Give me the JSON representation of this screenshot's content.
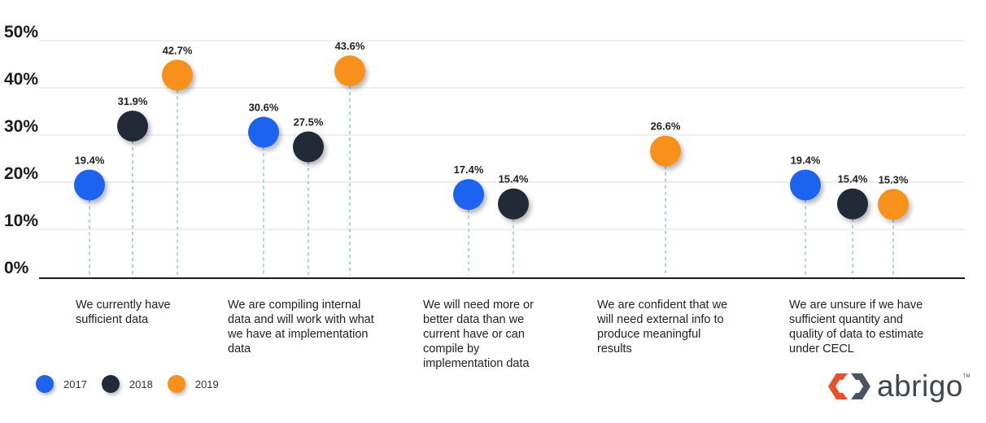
{
  "chart_data": {
    "type": "scatter",
    "ylim": [
      0,
      50
    ],
    "yticks": [
      "0%",
      "10%",
      "20%",
      "30%",
      "40%",
      "50%"
    ],
    "grid": true,
    "legend_position": "bottom-left",
    "categories": [
      [
        "We currently have",
        "sufficient data"
      ],
      [
        "We are compiling internal",
        "data and will work with what",
        "we have at implementation",
        "data"
      ],
      [
        "We will need more or",
        "better data than we",
        "current have or can",
        "compile by",
        "implementation data"
      ],
      [
        "We are confident that we",
        "will need external info to",
        "produce meaningful",
        "results"
      ],
      [
        "We are unsure if we have",
        "sufficient quantity and",
        "quality of data to estimate",
        "under CECL"
      ]
    ],
    "series": [
      {
        "name": "2017",
        "color": "#1e63f0",
        "values": [
          19.4,
          30.6,
          17.4,
          null,
          19.4
        ],
        "labels": [
          "19.4%",
          "30.6%",
          "17.4%",
          null,
          "19.4%"
        ]
      },
      {
        "name": "2018",
        "color": "#242b38",
        "values": [
          31.9,
          27.5,
          15.4,
          null,
          15.4
        ],
        "labels": [
          "31.9%",
          "27.5%",
          "15.4%",
          null,
          "15.4%"
        ]
      },
      {
        "name": "2019",
        "color": "#f7911e",
        "values": [
          42.7,
          43.6,
          null,
          26.6,
          15.3
        ],
        "labels": [
          "42.7%",
          "43.6%",
          null,
          "26.6%",
          "15.3%"
        ]
      }
    ]
  },
  "logo": {
    "text": "abrigo",
    "tm": "TM"
  }
}
